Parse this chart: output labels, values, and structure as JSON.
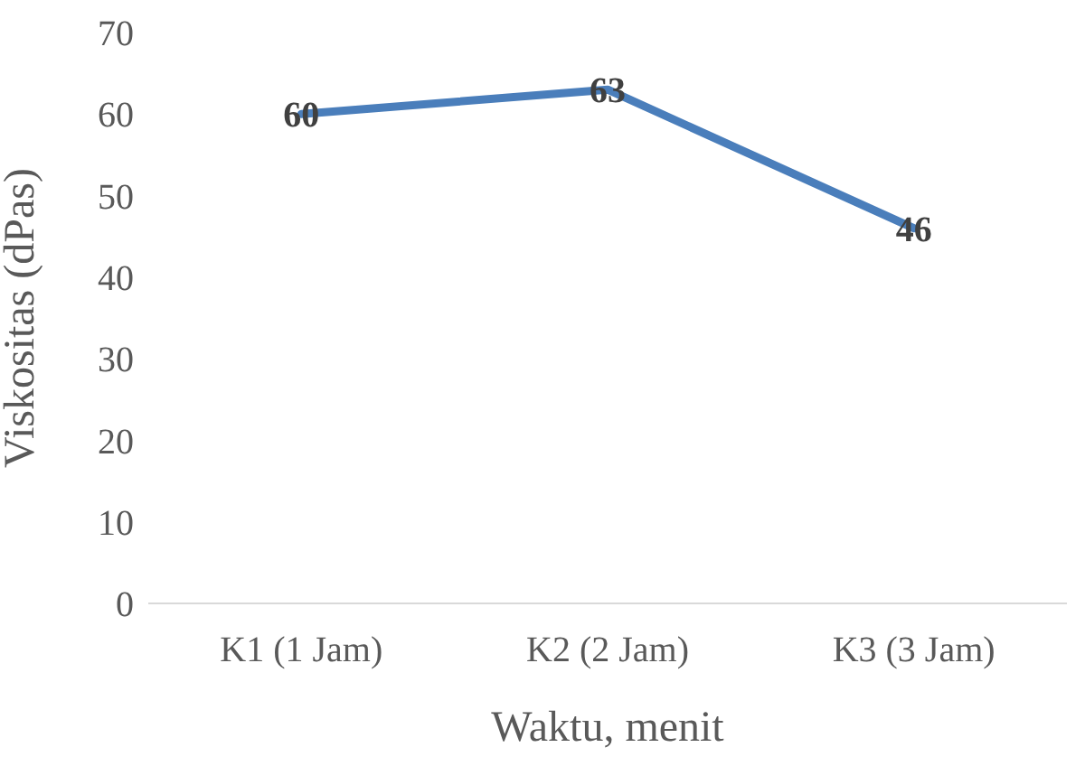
{
  "chart_data": {
    "type": "line",
    "xlabel": "Waktu, menit",
    "ylabel": "Viskositas (dPas)",
    "categories": [
      "K1 (1 Jam)",
      "K2 (2 Jam)",
      "K3 (3 Jam)"
    ],
    "series": [
      {
        "color": "#4a7ebb",
        "values": [
          60,
          63,
          46
        ]
      }
    ],
    "ylim": [
      0,
      70
    ],
    "yticks": [
      0,
      10,
      20,
      30,
      40,
      50,
      60,
      70
    ],
    "grid": false,
    "legend": false,
    "marker": "none",
    "line_style": "solid",
    "data_labels": true
  }
}
